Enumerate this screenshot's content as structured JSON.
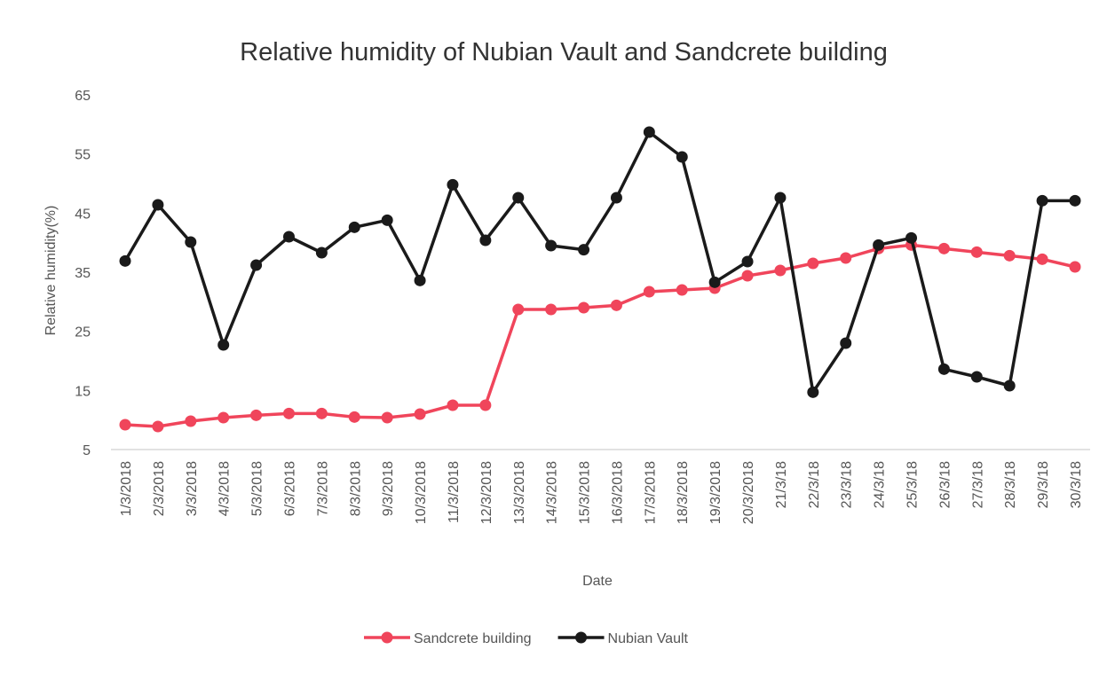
{
  "chart_data": {
    "type": "line",
    "title": "Relative humidity of Nubian Vault and Sandcrete building",
    "x_label": "Date",
    "y_label": "Relative humidity(%)",
    "categories": [
      "1/3/2018",
      "2/3/2018",
      "3/3/2018",
      "4/3/2018",
      "5/3/2018",
      "6/3/2018",
      "7/3/2018",
      "8/3/2018",
      "9/3/2018",
      "10/3/2018",
      "11/3/2018",
      "12/3/2018",
      "13/3/2018",
      "14/3/2018",
      "15/3/2018",
      "16/3/2018",
      "17/3/2018",
      "18/3/2018",
      "19/3/2018",
      "20/3/2018",
      "21/3/18",
      "22/3/18",
      "23/3/18",
      "24/3/18",
      "25/3/18",
      "26/3/18",
      "27/3/18",
      "28/3/18",
      "29/3/18",
      "30/3/18"
    ],
    "series": [
      {
        "name": "Sandcrete building",
        "color": "#f0455b",
        "values": [
          9.2,
          8.9,
          9.8,
          10.4,
          10.8,
          11.1,
          11.1,
          10.5,
          10.4,
          11,
          12.5,
          12.5,
          28.7,
          28.7,
          29,
          29.4,
          31.7,
          32,
          32.3,
          34.4,
          35.3,
          36.5,
          37.4,
          39,
          39.6,
          39,
          38.4,
          37.8,
          37.2,
          35.9
        ]
      },
      {
        "name": "Nubian Vault",
        "color": "#1a1a1a",
        "values": [
          36.9,
          46.4,
          40.1,
          22.7,
          36.2,
          41,
          38.3,
          42.6,
          43.8,
          33.6,
          49.8,
          40.4,
          47.6,
          39.5,
          38.8,
          47.6,
          58.7,
          54.5,
          33.3,
          36.8,
          47.6,
          14.7,
          23,
          39.6,
          40.8,
          18.6,
          17.3,
          15.8,
          47.1,
          47.1
        ]
      }
    ],
    "ylim": [
      5,
      65
    ],
    "yticks": [
      5,
      15,
      25,
      35,
      45,
      55,
      65
    ],
    "grid": false,
    "legend": "bottom"
  }
}
